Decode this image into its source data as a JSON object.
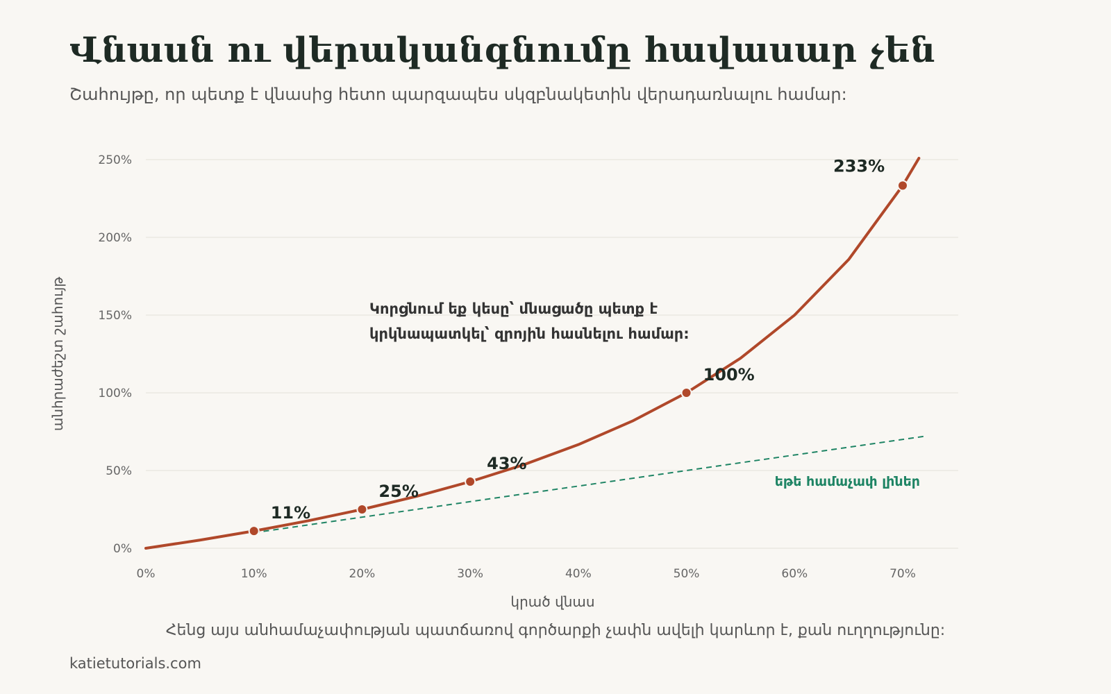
{
  "header": {
    "title": "Վնասն ու վերականգնումը հավասար չեն",
    "subtitle": "Շահույթը, որ պետք է վնասից հետո պարզապես սկզբնակետին վերադառնալու համար:"
  },
  "footer": {
    "caption": "Հենց այս անհամաչափության պատճառով գործարքի չափն ավելի կարևոր է, քան ուղղությունը:",
    "credit": "katietutorials.com"
  },
  "chart_data": {
    "type": "line",
    "title": "Վնասն ու վերականգնումը հավասար չեն",
    "subtitle": "Շահույթը, որ պետք է վնասից հետո պարզապես սկզբնակետին վերադառնալու համար:",
    "xlabel": "կրած վնաս",
    "ylabel": "անհրաժեշտ շահույթ",
    "xlim": [
      0,
      0.72
    ],
    "ylim": [
      0,
      2.5
    ],
    "x_ticks": [
      0,
      0.1,
      0.2,
      0.3,
      0.4,
      0.5,
      0.6,
      0.7
    ],
    "x_tick_labels": [
      "0%",
      "10%",
      "20%",
      "30%",
      "40%",
      "50%",
      "60%",
      "70%"
    ],
    "y_ticks": [
      0,
      0.5,
      1,
      1.5,
      2,
      2.5
    ],
    "y_tick_labels": [
      "0%",
      "50%",
      "100%",
      "150%",
      "200%",
      "250%"
    ],
    "grid": "horizontal",
    "series": [
      {
        "formula": "x / (1 - x)",
        "color": "#b0482a",
        "style": "solid",
        "x": [
          0,
          0.05,
          0.1,
          0.15,
          0.2,
          0.25,
          0.3,
          0.35,
          0.4,
          0.45,
          0.5,
          0.55,
          0.6,
          0.65,
          0.7,
          0.715
        ],
        "y": [
          0,
          0.0526,
          0.1111,
          0.1765,
          0.25,
          0.3333,
          0.4286,
          0.5385,
          0.6667,
          0.8182,
          1.0,
          1.2222,
          1.5,
          1.8571,
          2.3333,
          2.5088
        ]
      },
      {
        "name": "եթե համաչափ լիներ",
        "formula": "x",
        "color": "#1e8464",
        "style": "dashed",
        "x": [
          0.1,
          0.72
        ],
        "y": [
          0.1,
          0.72
        ]
      }
    ],
    "highlighted_points": [
      {
        "x": 0.1,
        "y": 0.1111,
        "label": "11%"
      },
      {
        "x": 0.2,
        "y": 0.25,
        "label": "25%"
      },
      {
        "x": 0.3,
        "y": 0.4286,
        "label": "43%"
      },
      {
        "x": 0.5,
        "y": 1.0,
        "label": "100%"
      },
      {
        "x": 0.7,
        "y": 2.3333,
        "label": "233%"
      }
    ],
    "annotation": {
      "lines": [
        "Կորցնում եք կեսը՝ մնացածը պետք է",
        "կրկնապատկել՝ զրոյին հասնելու համար:"
      ]
    }
  }
}
